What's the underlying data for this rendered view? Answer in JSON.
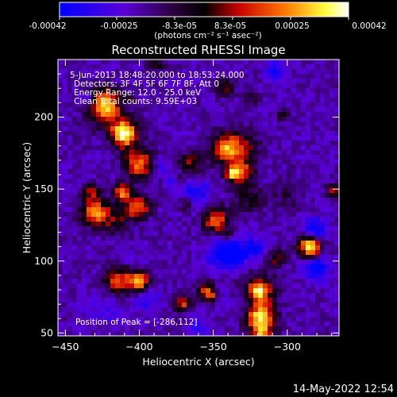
{
  "colorbar": {
    "ticks": [
      "-0.00042",
      "-0.00025",
      "-8.3e-05",
      "8.3e-05",
      "0.00025",
      "0.00042"
    ],
    "units": "(photons cm⁻² s⁻¹ asec⁻²)"
  },
  "plot": {
    "title": "Reconstructed RHESSI Image",
    "annotations": [
      "5-Jun-2013 18:48:20.000 to 18:53:24.000",
      "Detectors: 3F 4F 5F 6F 7F 8F, Att 0",
      "Energy Range: 12.0 - 25.0 keV",
      "Clean     Total counts: 9.59E+03"
    ],
    "peak_label": "Position of Peak = [-286,112]"
  },
  "footer": {
    "timestamp": "14-May-2022 12:54"
  },
  "chart_data": {
    "type": "heatmap",
    "title": "Reconstructed RHESSI Image",
    "xlabel": "Heliocentric X (arcsec)",
    "ylabel": "Heliocentric Y (arcsec)",
    "xlim": [
      -455,
      -265
    ],
    "ylim": [
      48,
      240
    ],
    "xticks": [
      -450,
      -400,
      -350,
      -300
    ],
    "yticks": [
      50,
      100,
      150,
      200
    ],
    "colorbar_range": [
      -0.00042,
      0.00042
    ],
    "colormap": [
      "#0000ff",
      "#6a00c8",
      "#1a0020",
      "#ff2a00",
      "#ff8a00",
      "#ffff50",
      "#ffffff"
    ],
    "peak": [
      -286,
      112
    ]
  }
}
